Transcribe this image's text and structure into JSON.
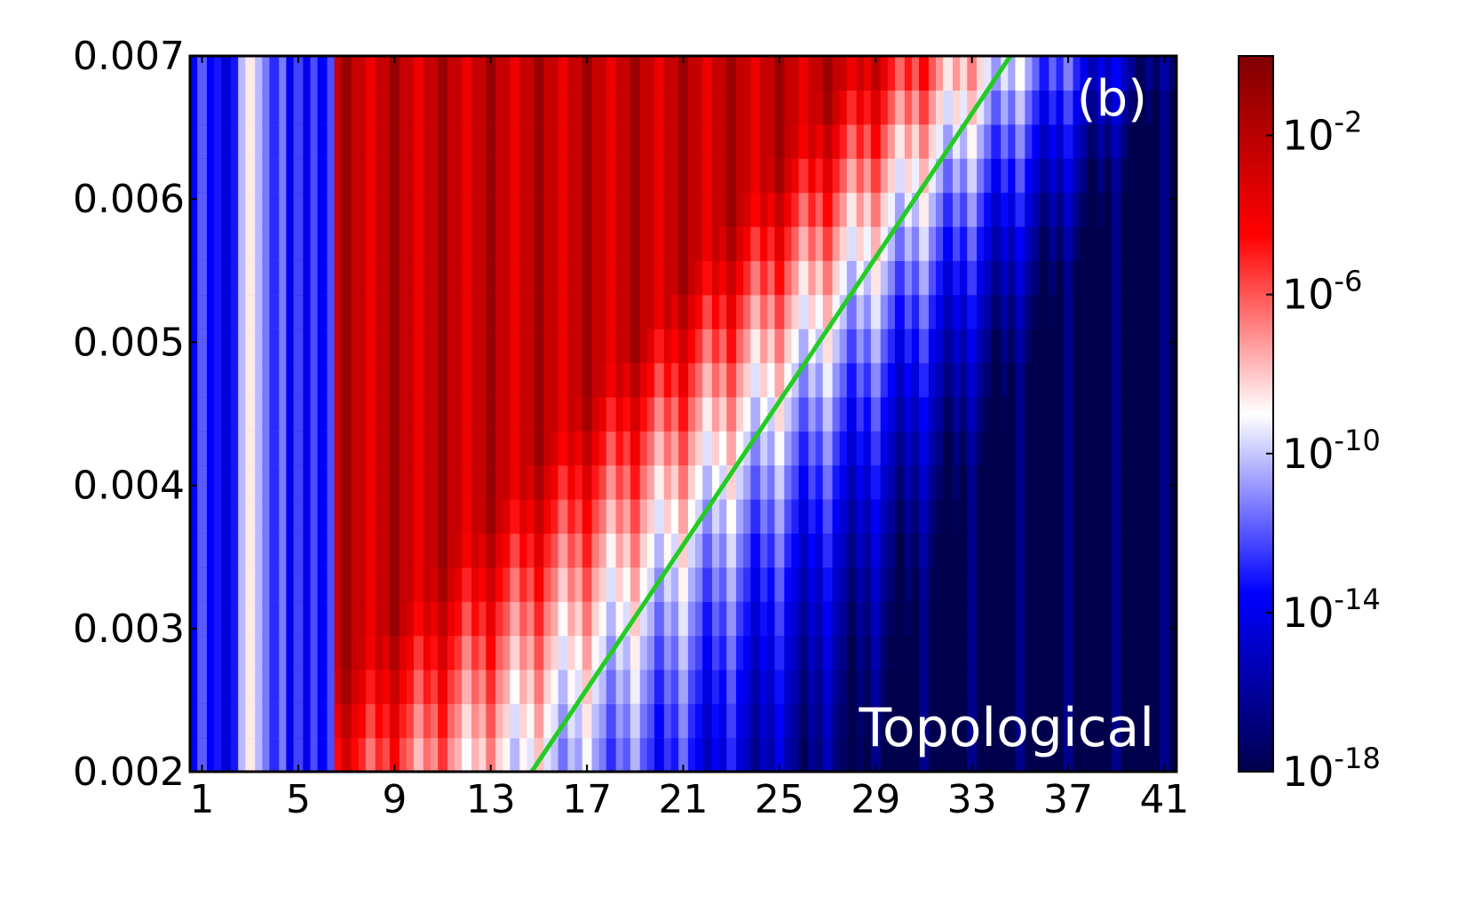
{
  "chart_data": {
    "type": "heatmap",
    "panel_label": "(b)",
    "region_label": "Topological",
    "x_ticks": [
      "1",
      "5",
      "9",
      "13",
      "17",
      "21",
      "25",
      "29",
      "33",
      "37",
      "41"
    ],
    "x_tick_values": [
      1,
      5,
      9,
      13,
      17,
      21,
      25,
      29,
      33,
      37,
      41
    ],
    "xlim": [
      0,
      41
    ],
    "y_ticks": [
      "0.002",
      "0.003",
      "0.004",
      "0.005",
      "0.006",
      "0.007"
    ],
    "y_tick_values": [
      0.002,
      0.003,
      0.004,
      0.005,
      0.006,
      0.007
    ],
    "ylim": [
      0.002,
      0.007
    ],
    "colorbar": {
      "scale": "log",
      "ticks": [
        "10",
        "10",
        "10",
        "10",
        "10"
      ],
      "tick_exponents": [
        "-2",
        "-6",
        "-10",
        "-14",
        "-18"
      ],
      "tick_log_values": [
        -2,
        -6,
        -10,
        -14,
        -18
      ],
      "range_log": [
        -18,
        0
      ],
      "colormap": [
        "#00004d",
        "#0000ff",
        "#ffffff",
        "#ff0000",
        "#7f0000"
      ]
    },
    "boundary_line": {
      "color": "#22cc22",
      "points": [
        [
          14.2,
          0.002
        ],
        [
          34.1,
          0.007
        ]
      ]
    },
    "grid": false,
    "n_columns": 41,
    "n_rows": 21
  }
}
